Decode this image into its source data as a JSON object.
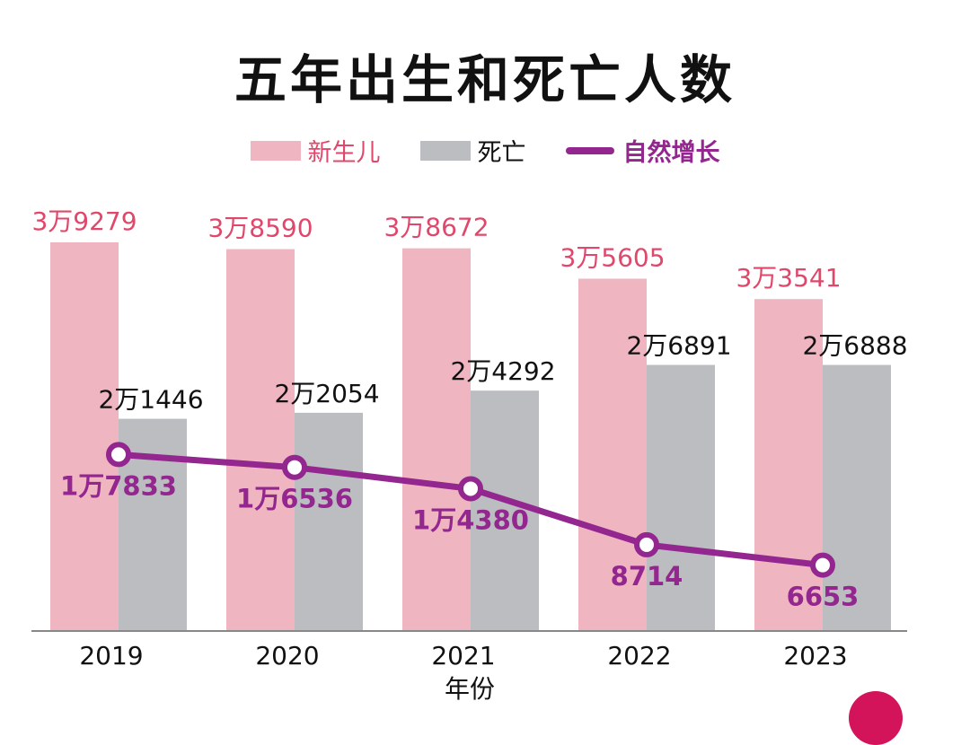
{
  "chart_data": {
    "type": "bar",
    "title": "五年出生和死亡人数",
    "xlabel": "年份",
    "ylabel": "",
    "categories": [
      "2019",
      "2020",
      "2021",
      "2022",
      "2023"
    ],
    "ylim": [
      0,
      40000
    ],
    "grid": false,
    "legend_placement": "top",
    "series": [
      {
        "name": "新生儿",
        "kind": "bar",
        "color": "#efb6c1",
        "label_color": "#e0476a",
        "values": [
          39279,
          38590,
          38672,
          35605,
          33541
        ],
        "labels": [
          "3万9279",
          "3万8590",
          "3万8672",
          "3万5605",
          "3万3541"
        ]
      },
      {
        "name": "死亡",
        "kind": "bar",
        "color": "#bcbdc0",
        "label_color": "#111111",
        "values": [
          21446,
          22054,
          24292,
          26891,
          26888
        ],
        "labels": [
          "2万1446",
          "2万2054",
          "2万4292",
          "2万6891",
          "2万6888"
        ]
      },
      {
        "name": "自然增长",
        "kind": "line",
        "color": "#93278f",
        "label_color": "#93278f",
        "values": [
          17833,
          16536,
          14380,
          8714,
          6653
        ],
        "labels": [
          "1万7833",
          "1万6536",
          "1万4380",
          "8714",
          "6653"
        ]
      }
    ]
  }
}
